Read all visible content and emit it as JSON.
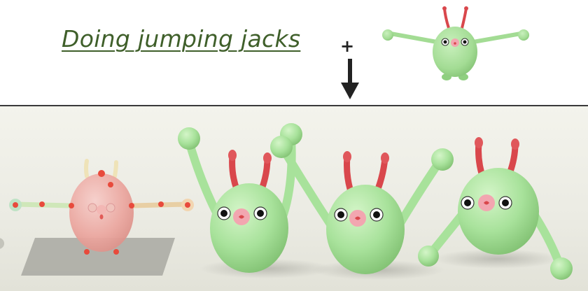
{
  "header": {
    "title": "Doing jumping jacks",
    "operator": "+"
  },
  "icons": {
    "reference": "green-creature-tpose-icon",
    "arrow": "down-arrow-icon"
  },
  "colors": {
    "title": "#3f5f2a",
    "creature_green": "#a8e29b",
    "antenna_red": "#d9474c",
    "nose_pink": "#f2a6b0",
    "rig_joint": "#e84a3c",
    "ground_plane": "#9c9c9c"
  }
}
